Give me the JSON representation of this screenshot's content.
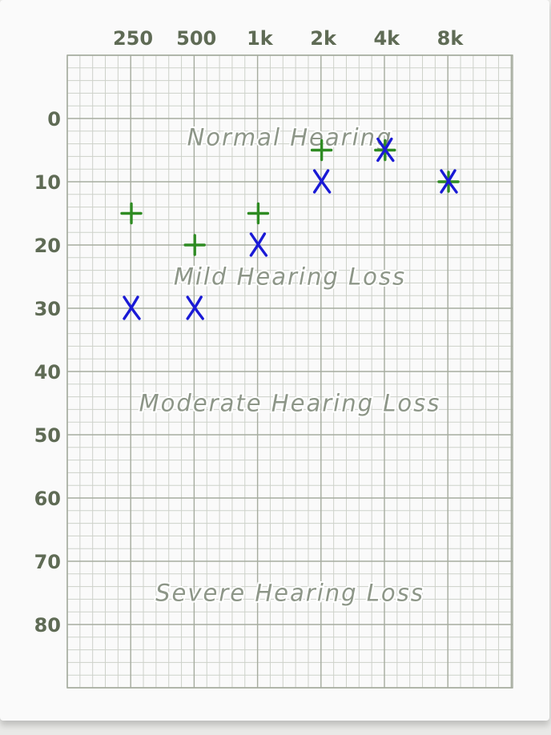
{
  "chart_data": {
    "type": "scatter",
    "x_categories": [
      "250",
      "500",
      "1k",
      "2k",
      "4k",
      "8k"
    ],
    "y_ticks": [
      0,
      10,
      20,
      30,
      40,
      50,
      60,
      70,
      80
    ],
    "ylim": [
      -10,
      90
    ],
    "y_inverted": true,
    "grid": true,
    "series": [
      {
        "marker": "+",
        "color": "#2e8b22",
        "values": [
          15,
          20,
          15,
          5,
          5,
          10
        ]
      },
      {
        "marker": "X",
        "color": "#1a1ad6",
        "values": [
          30,
          30,
          20,
          10,
          5,
          10
        ]
      }
    ],
    "regions": [
      {
        "label": "Normal Hearing",
        "y": 3
      },
      {
        "label": "Mild Hearing Loss",
        "y": 25
      },
      {
        "label": "Moderate Hearing Loss",
        "y": 45
      },
      {
        "label": "Severe Hearing Loss",
        "y": 75
      }
    ],
    "colors": {
      "grid_major": "#a6ac9f",
      "grid_minor": "#cdd1c9",
      "tick_text": "#5f6b55",
      "region_text": "#8d9688"
    }
  }
}
